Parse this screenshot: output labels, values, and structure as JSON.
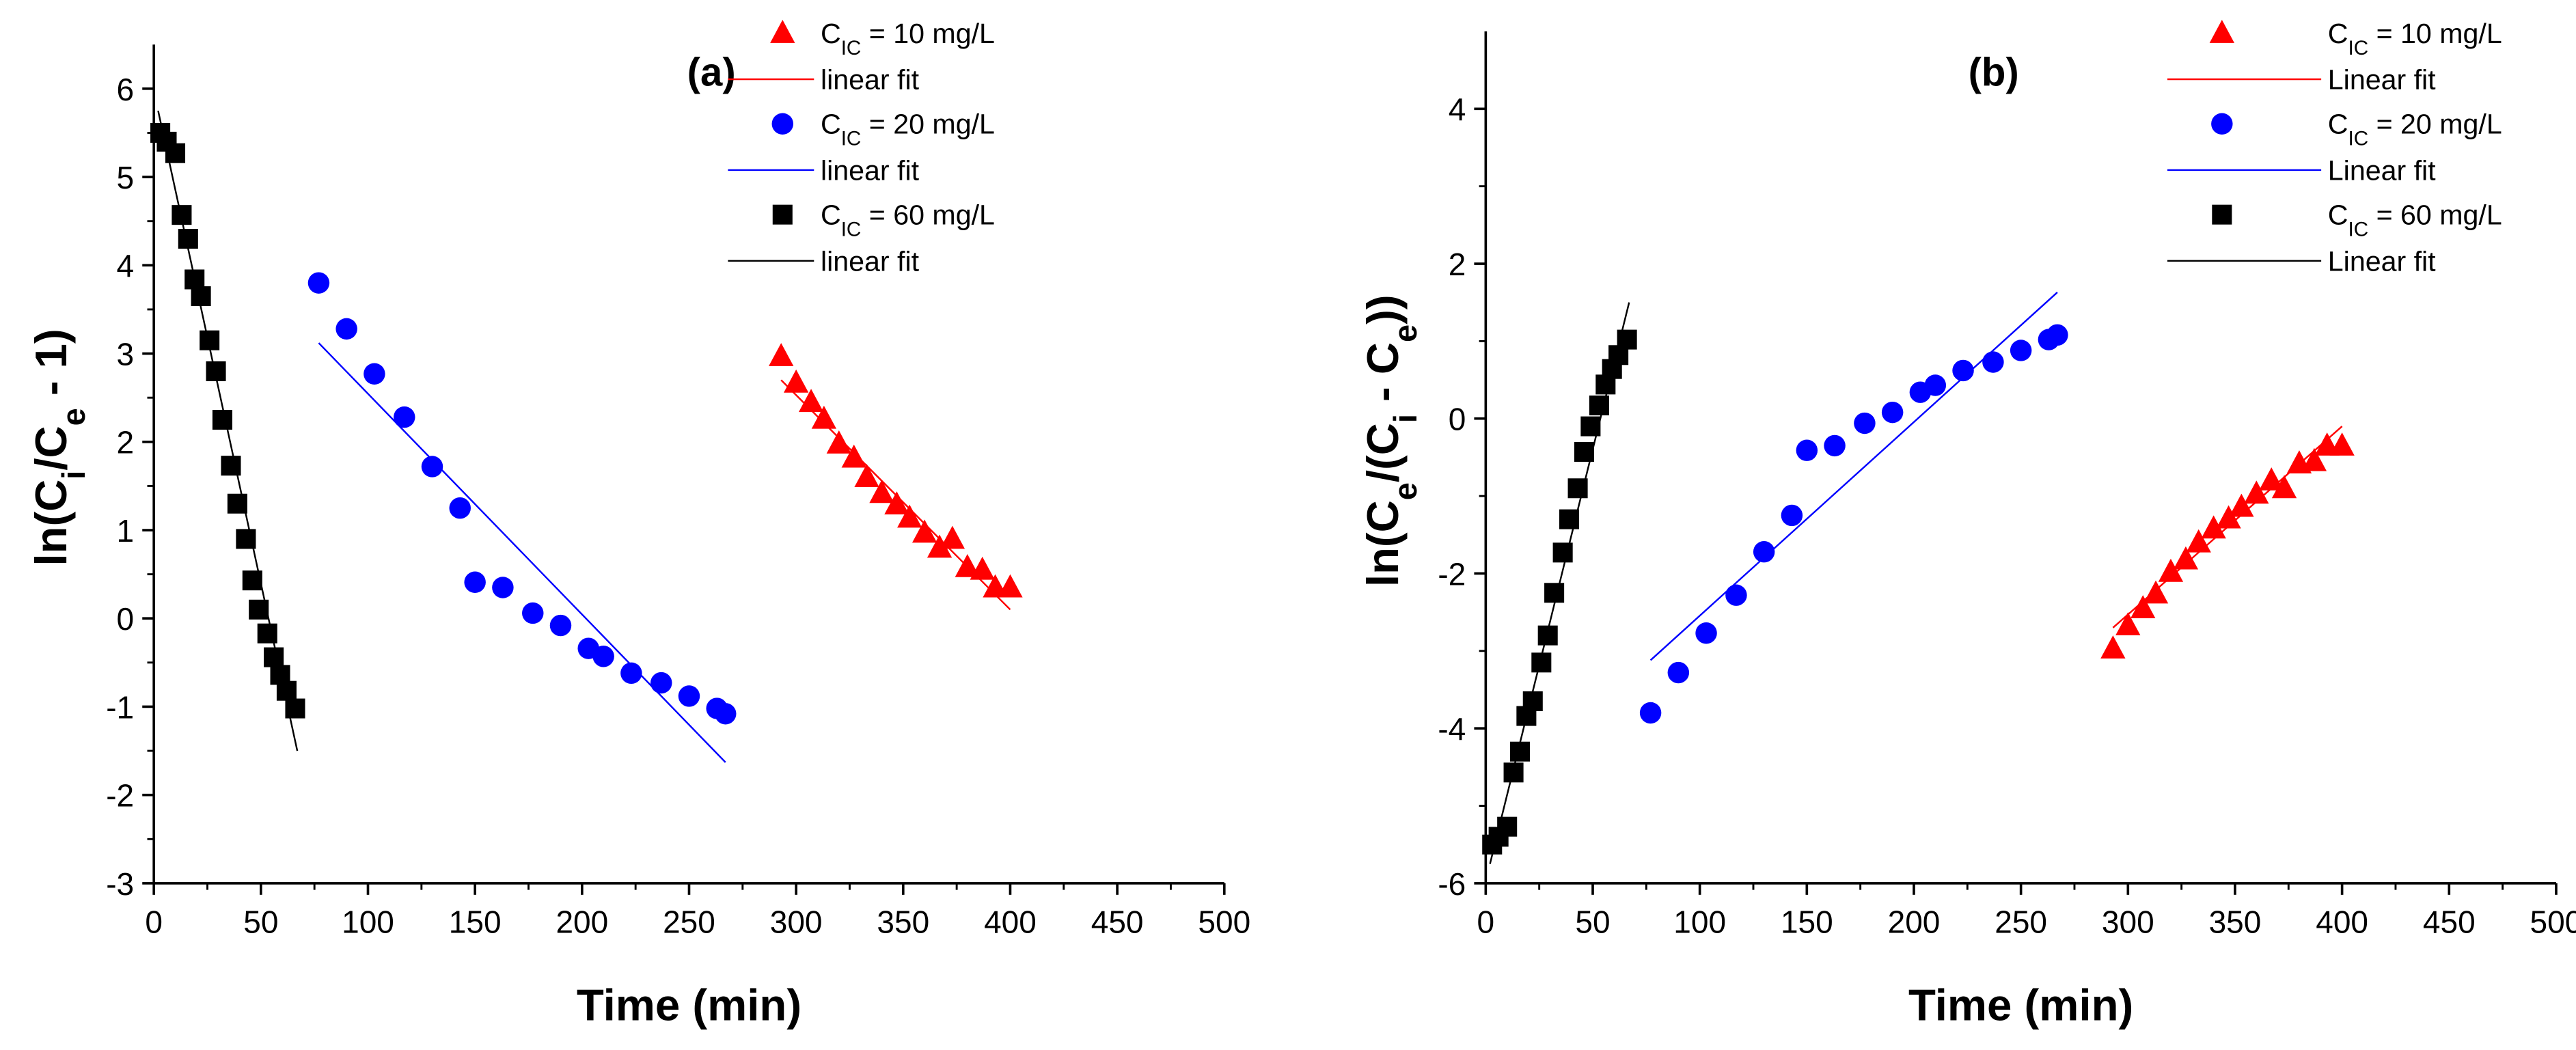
{
  "chart_data": [
    {
      "type": "scatter",
      "title": "(a)",
      "xlabel": "Time (min)",
      "ylabel_parts": [
        {
          "t": "ln(C"
        },
        {
          "t": "i",
          "sub": true
        },
        {
          "t": "/C"
        },
        {
          "t": "e",
          "sub": true
        },
        {
          "t": " - 1)"
        }
      ],
      "xlim": [
        0,
        500
      ],
      "ylim": [
        -3,
        6.5
      ],
      "xticks": [
        0,
        50,
        100,
        150,
        200,
        250,
        300,
        350,
        400,
        450,
        500
      ],
      "yticks": [
        -3,
        -2,
        -1,
        0,
        1,
        2,
        3,
        4,
        5,
        6
      ],
      "legend_position": "top-right",
      "series": [
        {
          "name_parts": [
            {
              "t": "C"
            },
            {
              "t": "IC",
              "sub": true
            },
            {
              "t": " = 10 mg/L"
            }
          ],
          "marker": "triangle",
          "color": "#ff0000",
          "x": [
            293,
            300,
            307,
            313,
            320,
            327,
            333,
            340,
            347,
            353,
            360,
            367,
            373,
            380,
            387,
            393,
            400
          ],
          "y": [
            2.97,
            2.67,
            2.45,
            2.26,
            1.98,
            1.82,
            1.6,
            1.42,
            1.29,
            1.14,
            0.97,
            0.8,
            0.9,
            0.58,
            0.55,
            0.35,
            0.35
          ],
          "fit_label": "linear fit",
          "fit": [
            [
              293,
              2.7
            ],
            [
              400,
              0.1
            ]
          ]
        },
        {
          "name_parts": [
            {
              "t": "C"
            },
            {
              "t": "IC",
              "sub": true
            },
            {
              "t": " = 20 mg/L"
            }
          ],
          "marker": "circle",
          "color": "#0000ff",
          "x": [
            77,
            90,
            103,
            117,
            130,
            143,
            150,
            163,
            177,
            190,
            203,
            210,
            223,
            237,
            250,
            263,
            267
          ],
          "y": [
            3.8,
            3.28,
            2.77,
            2.28,
            1.72,
            1.25,
            0.41,
            0.35,
            0.06,
            -0.08,
            -0.34,
            -0.43,
            -0.62,
            -0.73,
            -0.88,
            -1.02,
            -1.08
          ],
          "fit_label": "linear fit",
          "fit": [
            [
              77,
              3.12
            ],
            [
              267,
              -1.63
            ]
          ]
        },
        {
          "name_parts": [
            {
              "t": "C"
            },
            {
              "t": "IC",
              "sub": true
            },
            {
              "t": " = 60 mg/L"
            }
          ],
          "marker": "square",
          "color": "#000000",
          "x": [
            3,
            6,
            10,
            13,
            16,
            19,
            22,
            26,
            29,
            32,
            36,
            39,
            43,
            46,
            49,
            53,
            56,
            59,
            62,
            66
          ],
          "y": [
            5.5,
            5.4,
            5.27,
            4.57,
            4.3,
            3.84,
            3.65,
            3.15,
            2.8,
            2.25,
            1.73,
            1.3,
            0.9,
            0.43,
            0.1,
            -0.17,
            -0.44,
            -0.64,
            -0.82,
            -1.02
          ],
          "fit_label": "linear fit",
          "fit": [
            [
              2,
              5.75
            ],
            [
              67,
              -1.5
            ]
          ]
        }
      ]
    },
    {
      "type": "scatter",
      "title": "(b)",
      "xlabel": "Time (min)",
      "ylabel_parts": [
        {
          "t": "ln(C"
        },
        {
          "t": "e",
          "sub": true
        },
        {
          "t": "/(C"
        },
        {
          "t": "i",
          "sub": true
        },
        {
          "t": " - C"
        },
        {
          "t": "e",
          "sub": true
        },
        {
          "t": "))"
        }
      ],
      "xlim": [
        0,
        500
      ],
      "ylim": [
        -6,
        5
      ],
      "xticks": [
        0,
        50,
        100,
        150,
        200,
        250,
        300,
        350,
        400,
        450,
        500
      ],
      "yticks": [
        -6,
        -4,
        -2,
        0,
        2,
        4
      ],
      "legend_position": "top-right",
      "series": [
        {
          "name_parts": [
            {
              "t": "C"
            },
            {
              "t": "IC",
              "sub": true
            },
            {
              "t": " = 10 mg/L"
            }
          ],
          "marker": "triangle",
          "color": "#ff0000",
          "x": [
            293,
            300,
            307,
            313,
            320,
            327,
            333,
            340,
            347,
            353,
            360,
            367,
            373,
            380,
            387,
            393,
            400
          ],
          "y": [
            -2.97,
            -2.67,
            -2.45,
            -2.26,
            -1.98,
            -1.82,
            -1.6,
            -1.42,
            -1.29,
            -1.14,
            -0.97,
            -0.8,
            -0.9,
            -0.58,
            -0.55,
            -0.35,
            -0.35
          ],
          "fit_label": "Linear fit",
          "fit": [
            [
              293,
              -2.7
            ],
            [
              400,
              -0.1
            ]
          ]
        },
        {
          "name_parts": [
            {
              "t": "C"
            },
            {
              "t": "IC",
              "sub": true
            },
            {
              "t": " = 20 mg/L"
            }
          ],
          "marker": "circle",
          "color": "#0000ff",
          "x": [
            77,
            90,
            103,
            117,
            130,
            143,
            150,
            163,
            177,
            190,
            203,
            210,
            223,
            237,
            250,
            263,
            267
          ],
          "y": [
            -3.8,
            -3.28,
            -2.77,
            -2.28,
            -1.72,
            -1.25,
            -0.41,
            -0.35,
            -0.06,
            0.08,
            0.34,
            0.43,
            0.62,
            0.73,
            0.88,
            1.02,
            1.08
          ],
          "fit_label": "Linear fit",
          "fit": [
            [
              77,
              -3.12
            ],
            [
              267,
              1.63
            ]
          ]
        },
        {
          "name_parts": [
            {
              "t": "C"
            },
            {
              "t": "IC",
              "sub": true
            },
            {
              "t": " = 60 mg/L"
            }
          ],
          "marker": "square",
          "color": "#000000",
          "x": [
            3,
            6,
            10,
            13,
            16,
            19,
            22,
            26,
            29,
            32,
            36,
            39,
            43,
            46,
            49,
            53,
            56,
            59,
            62,
            66
          ],
          "y": [
            -5.5,
            -5.4,
            -5.27,
            -4.57,
            -4.3,
            -3.84,
            -3.65,
            -3.15,
            -2.8,
            -2.25,
            -1.73,
            -1.3,
            -0.9,
            -0.43,
            -0.1,
            0.17,
            0.44,
            0.64,
            0.82,
            1.02
          ],
          "fit_label": "Linear fit",
          "fit": [
            [
              2,
              -5.75
            ],
            [
              67,
              1.5
            ]
          ]
        }
      ]
    }
  ]
}
